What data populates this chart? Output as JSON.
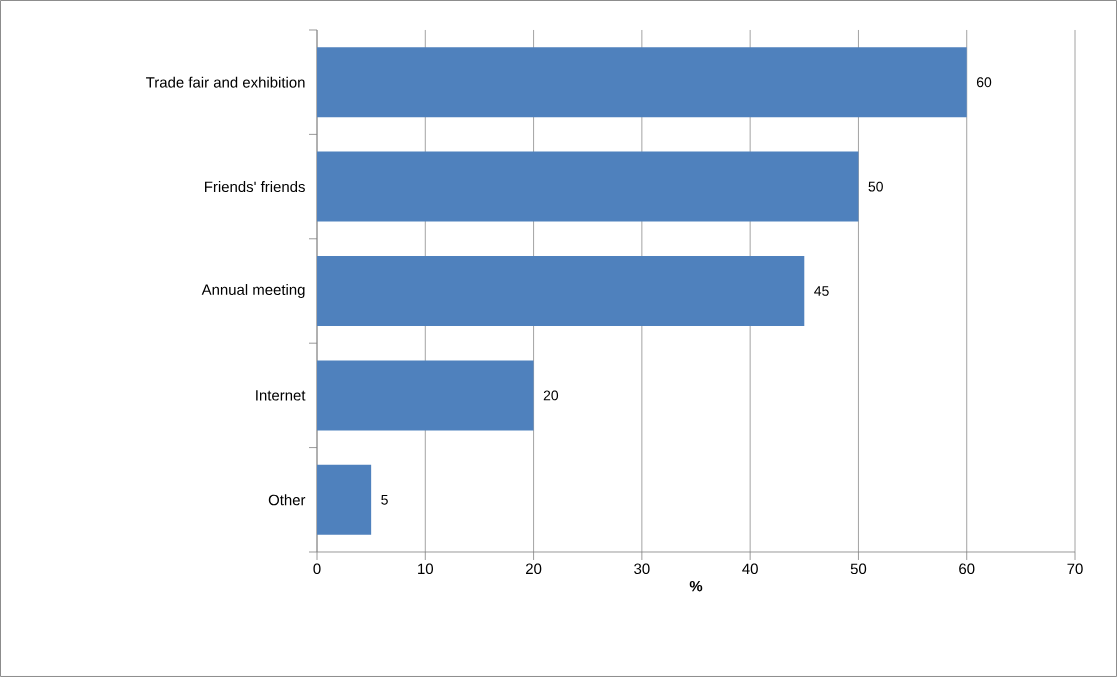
{
  "chart_data": {
    "type": "bar",
    "orientation": "horizontal",
    "xlabel": "%",
    "categories": [
      "Trade fair and exhibition",
      "Friends' friends",
      "Annual meeting",
      "Internet",
      "Other"
    ],
    "values": [
      60,
      50,
      45,
      20,
      5
    ],
    "color": "#4f81bd",
    "data_labels": true,
    "xlim": [
      0,
      70
    ],
    "xticks": [
      0,
      10,
      20,
      30,
      40,
      50,
      60,
      70
    ],
    "grid": "x"
  }
}
